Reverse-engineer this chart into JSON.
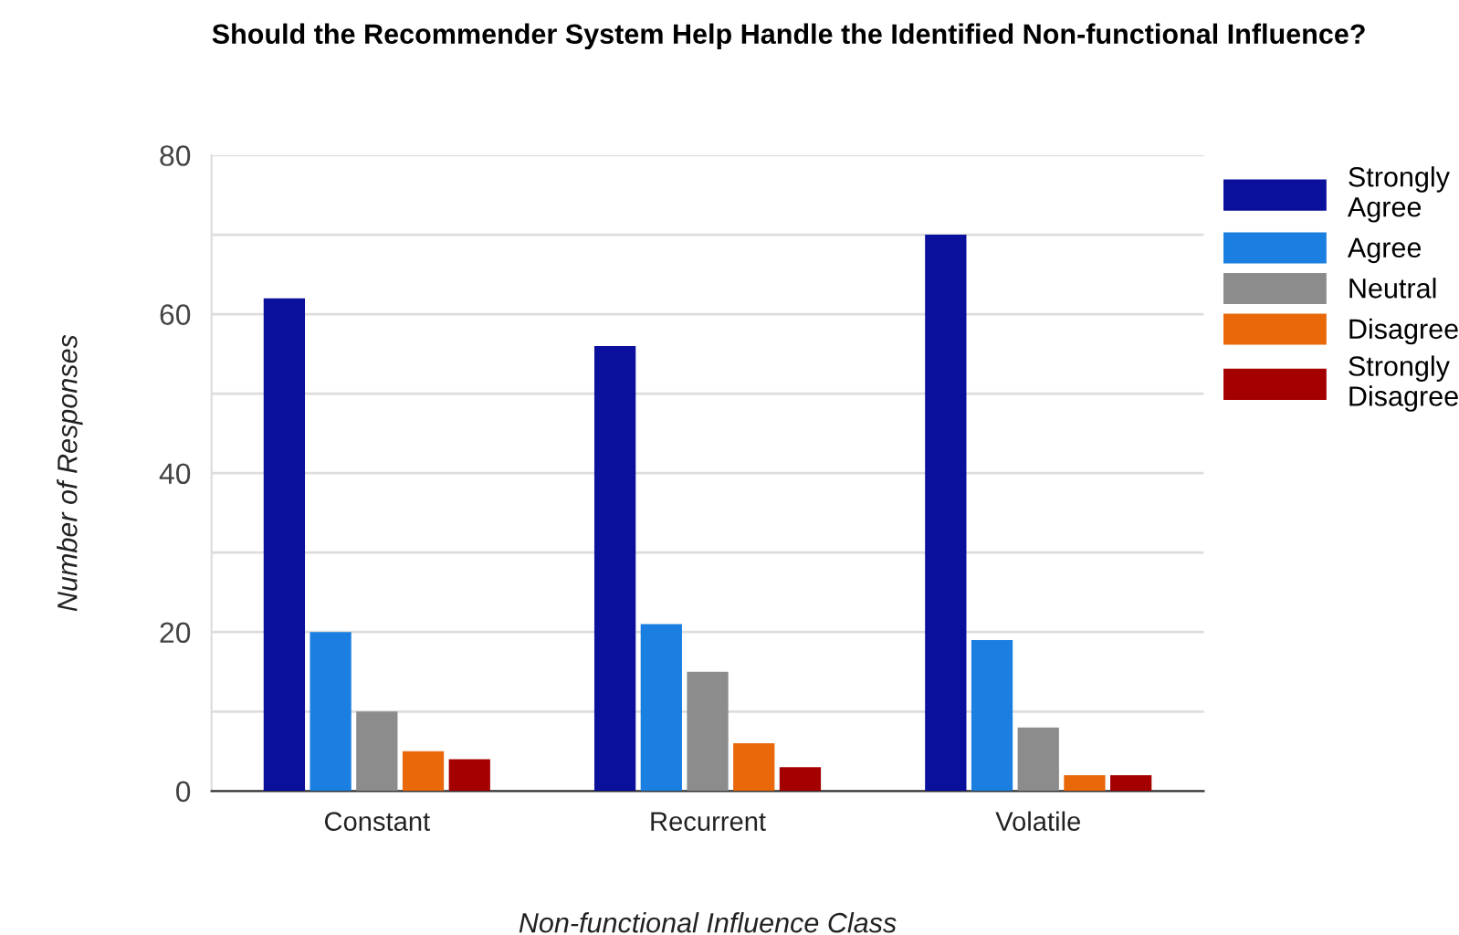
{
  "chart_data": {
    "type": "bar",
    "title": "Should the Recommender System Help Handle the Identified Non-functional Influence?",
    "xlabel": "Non-functional Influence Class",
    "ylabel": "Number of Responses",
    "categories": [
      "Constant",
      "Recurrent",
      "Volatile"
    ],
    "series": [
      {
        "name": "Strongly Agree",
        "color": "#0a0f9c",
        "values": [
          62,
          56,
          70
        ]
      },
      {
        "name": "Agree",
        "color": "#1a7fe0",
        "values": [
          20,
          21,
          19
        ]
      },
      {
        "name": "Neutral",
        "color": "#8c8c8c",
        "values": [
          10,
          15,
          8
        ]
      },
      {
        "name": "Disagree",
        "color": "#e8680a",
        "values": [
          5,
          6,
          2
        ]
      },
      {
        "name": "Strongly Disagree",
        "color": "#a50000",
        "values": [
          4,
          3,
          2
        ]
      }
    ],
    "ylim": [
      0,
      80
    ],
    "yticks": [
      0,
      {
        "value": 10,
        "label": null
      },
      20,
      {
        "value": 30,
        "label": null
      },
      40,
      {
        "value": 50,
        "label": null
      },
      60,
      {
        "value": 70,
        "label": null
      },
      80
    ],
    "grid": "y",
    "legend": "right"
  }
}
